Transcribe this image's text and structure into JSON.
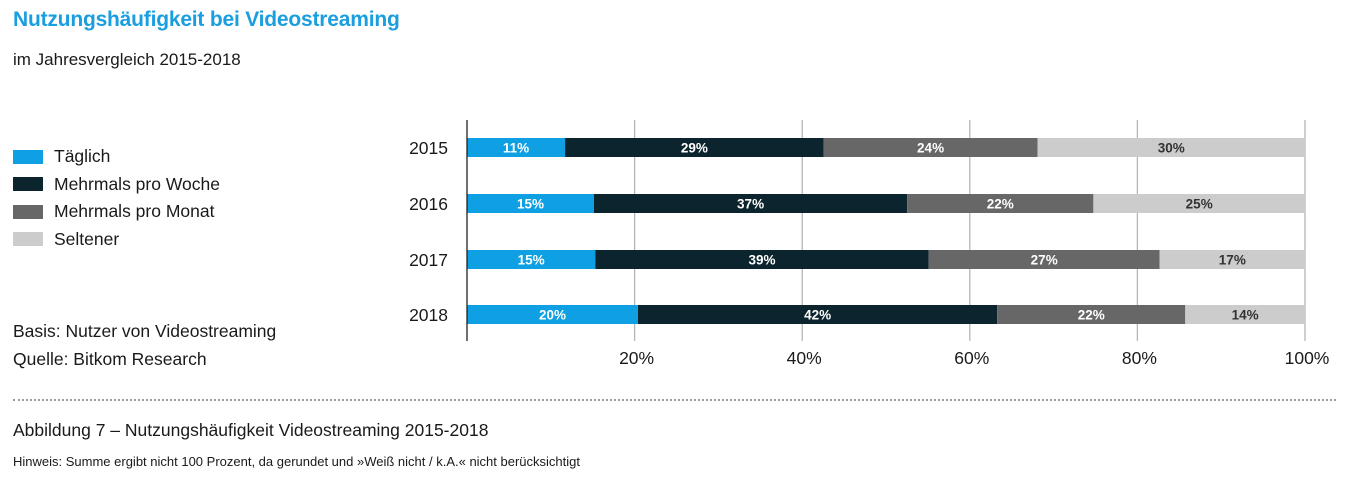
{
  "header": {
    "title": "Nutzungshäufigkeit bei Videostreaming",
    "subtitle": "im Jahresvergleich 2015-2018"
  },
  "legend": [
    {
      "label": "Täglich",
      "color": "#0ea0e3"
    },
    {
      "label": "Mehrmals pro Woche",
      "color": "#0b242d"
    },
    {
      "label": "Mehrmals pro Monat",
      "color": "#676767"
    },
    {
      "label": "Seltener",
      "color": "#cccccc"
    }
  ],
  "basis": "Basis: Nutzer von Videostreaming",
  "source": "Quelle: Bitkom Research",
  "caption": "Abbildung 7 – Nutzungshäufigkeit Videostreaming 2015-2018",
  "note": "Hinweis: Summe ergibt nicht 100 Prozent, da gerundet und »Weiß nicht / k.A.« nicht berücksichtigt",
  "chart_data": {
    "type": "bar",
    "orientation": "horizontal",
    "stacked": true,
    "normalized": true,
    "title": "Nutzungshäufigkeit bei Videostreaming",
    "subtitle": "im Jahresvergleich 2015-2018",
    "categories": [
      "2015",
      "2016",
      "2017",
      "2018"
    ],
    "series": [
      {
        "name": "Täglich",
        "color": "#0ea0e3",
        "label_color": "#ffffff",
        "values": [
          11,
          15,
          15,
          20
        ]
      },
      {
        "name": "Mehrmals pro Woche",
        "color": "#0b242d",
        "label_color": "#ffffff",
        "values": [
          29,
          37,
          39,
          42
        ]
      },
      {
        "name": "Mehrmals pro Monat",
        "color": "#676767",
        "label_color": "#ffffff",
        "values": [
          24,
          22,
          27,
          22
        ]
      },
      {
        "name": "Seltener",
        "color": "#cccccc",
        "label_color": "#333333",
        "values": [
          30,
          25,
          17,
          14
        ]
      }
    ],
    "value_suffix": "%",
    "xlim": [
      0,
      100
    ],
    "xticks": [
      20,
      40,
      60,
      80,
      100
    ],
    "xtick_labels": [
      "20%",
      "40%",
      "60%",
      "80%",
      "100%"
    ],
    "xlabel": "",
    "ylabel": "",
    "grid": true,
    "legend_position": "left"
  }
}
